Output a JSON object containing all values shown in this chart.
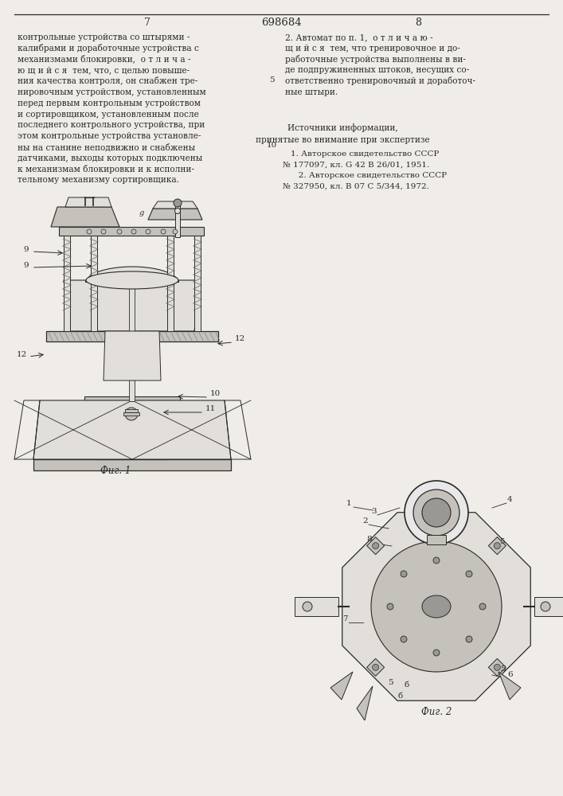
{
  "bg_color": "#f0ede8",
  "title_center": "698684",
  "page_left": "7",
  "page_right": "8",
  "col1_lines": [
    "контрольные устройства со штырями -",
    "калибрами и доработочные устройства с",
    "механизмами блокировки,  о т л и ч а -",
    "ю щ и й с я  тем, что, с целью повыше-",
    "ния качества контроля, он снабжен тре-",
    "нировочным устройством, установленным",
    "перед первым контрольным устройством",
    "и сортировщиком, установленным после",
    "последнего контрольного устройства, при",
    "этом контрольные устройства установле-",
    "ны на станине неподвижно и снабжены",
    "датчиками, выходы которых подключены",
    "к механизмам блокировки и к исполни-",
    "тельному механизму сортировщика."
  ],
  "col2_lines_top": [
    "2. Автомат по п. 1,  о т л и ч а ю -",
    "щ и й с я  тем, что тренировочное и до-",
    "работочные устройства выполнены в ви-",
    "де подпружиненных штоков, несущих со-",
    "ответственно тренировочный и доработоч-",
    "ные штыри."
  ],
  "sources_header": "Источники информации,",
  "sources_sub": "принятые во внимание при экспертизе",
  "ref1": "1. Авторское свидетельство СССР",
  "ref2": "№ 177097, кл. G 42 B 26/01, 1951.",
  "ref3": "   2. Авторское свидетельство СССР",
  "ref4": "№ 327950, кл. B 07 C 5/344, 1972.",
  "fig1_caption": "Фиг. 1",
  "fig2_caption": "Фиг. 2",
  "num5": "5",
  "num10": "10",
  "dc": "#2a2a2a",
  "fl": "#e2dfda",
  "fm": "#c5c2bc",
  "fd": "#9a9895"
}
